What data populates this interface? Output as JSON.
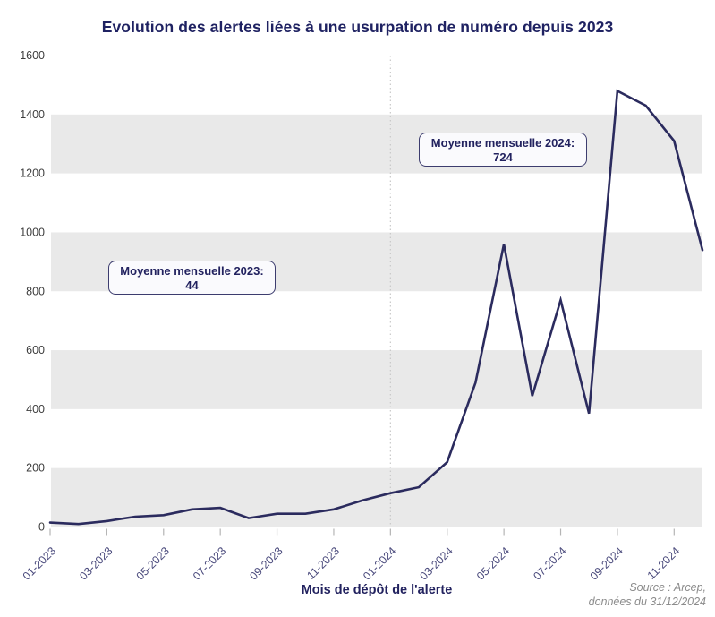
{
  "title": "Evolution des alertes liées à une usurpation de numéro depuis 2023",
  "chart_data": {
    "type": "line",
    "x": [
      "01-2023",
      "02-2023",
      "03-2023",
      "04-2023",
      "05-2023",
      "06-2023",
      "07-2023",
      "08-2023",
      "09-2023",
      "10-2023",
      "11-2023",
      "12-2023",
      "01-2024",
      "02-2024",
      "03-2024",
      "04-2024",
      "05-2024",
      "06-2024",
      "07-2024",
      "08-2024",
      "09-2024",
      "10-2024",
      "11-2024",
      "12-2024"
    ],
    "values": [
      15,
      10,
      20,
      35,
      40,
      60,
      65,
      30,
      45,
      45,
      60,
      90,
      115,
      135,
      220,
      490,
      960,
      445,
      770,
      385,
      1480,
      1430,
      1310,
      940
    ],
    "x_tick_labels": [
      "01-2023",
      "03-2023",
      "05-2023",
      "07-2023",
      "09-2023",
      "11-2023",
      "01-2024",
      "03-2024",
      "05-2024",
      "07-2024",
      "09-2024",
      "11-2024"
    ],
    "y_ticks": [
      0,
      200,
      400,
      600,
      800,
      1000,
      1200,
      1400,
      1600
    ],
    "ylim": [
      0,
      1600
    ],
    "title": "Evolution des alertes liées à une usurpation de numéro depuis 2023",
    "xlabel": "Mois de dépôt de l'alerte",
    "ylabel": "",
    "series_name": "Alertes liées à une usurpation de numéro",
    "divider_x": "01-2024",
    "legend": "none",
    "grid": "alternating horizontal gray bands every 200 units (0-200, 400-600, 800-1000, 1200-1400)"
  },
  "annotations": [
    {
      "line1": "Moyenne mensuelle 2023:",
      "line2": "44"
    },
    {
      "line1": "Moyenne mensuelle 2024:",
      "line2": "724"
    }
  ],
  "axis": {
    "x_title": "Mois de dépôt de l'alerte"
  },
  "source": {
    "line1": "Source : Arcep,",
    "line2": "données du 31/12/2024"
  },
  "colors": {
    "title": "#1f2262",
    "line": "#2b2b5e",
    "band": "#e9e9e9",
    "tick_mark": "#b5b5b5",
    "x_label": "#4b4b7d",
    "y_label": "#3d3d3d",
    "divider": "#c9c9c9",
    "annotation_border": "#3c3c6e",
    "annotation_bg": "#fafafd",
    "source_text": "#8c8c8c"
  }
}
